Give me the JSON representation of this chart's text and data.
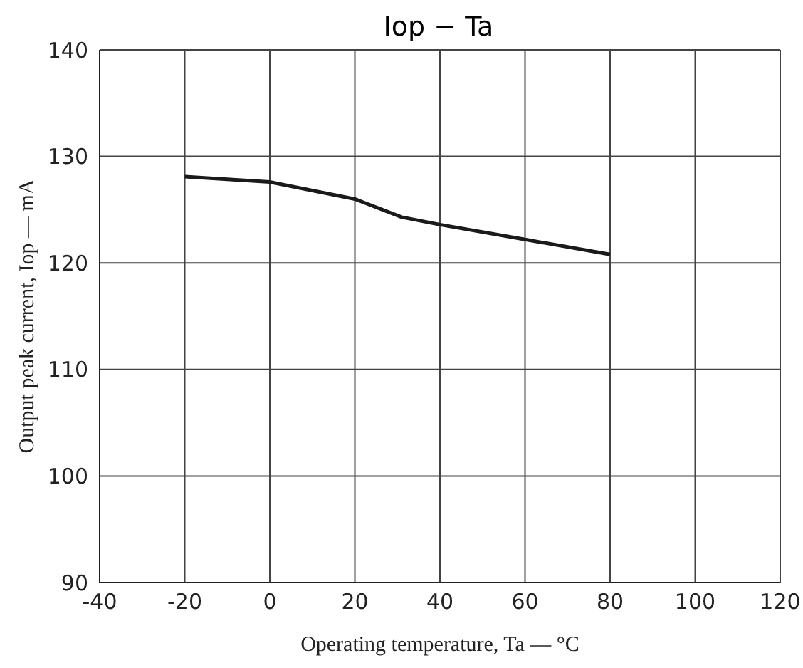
{
  "chart_data": {
    "type": "line",
    "title": "Iop  −  Ta",
    "xlabel": "Operating temperature, Ta — °C",
    "ylabel": "Output peak current, Iop — mA",
    "x": [
      -20,
      0,
      20,
      31,
      40,
      60,
      80
    ],
    "series": [
      {
        "color": "#1a1a1a",
        "values": [
          128.1,
          127.6,
          126.0,
          124.3,
          123.6,
          122.2,
          120.8
        ]
      }
    ],
    "xlim": [
      -40,
      120
    ],
    "xticks": [
      -40,
      -20,
      0,
      20,
      40,
      60,
      80,
      100,
      120
    ],
    "ylim": [
      90,
      140
    ],
    "yticks": [
      90,
      100,
      110,
      120,
      130,
      140
    ],
    "grid": true,
    "legend": false,
    "marker": "none",
    "line_style": "solid"
  }
}
